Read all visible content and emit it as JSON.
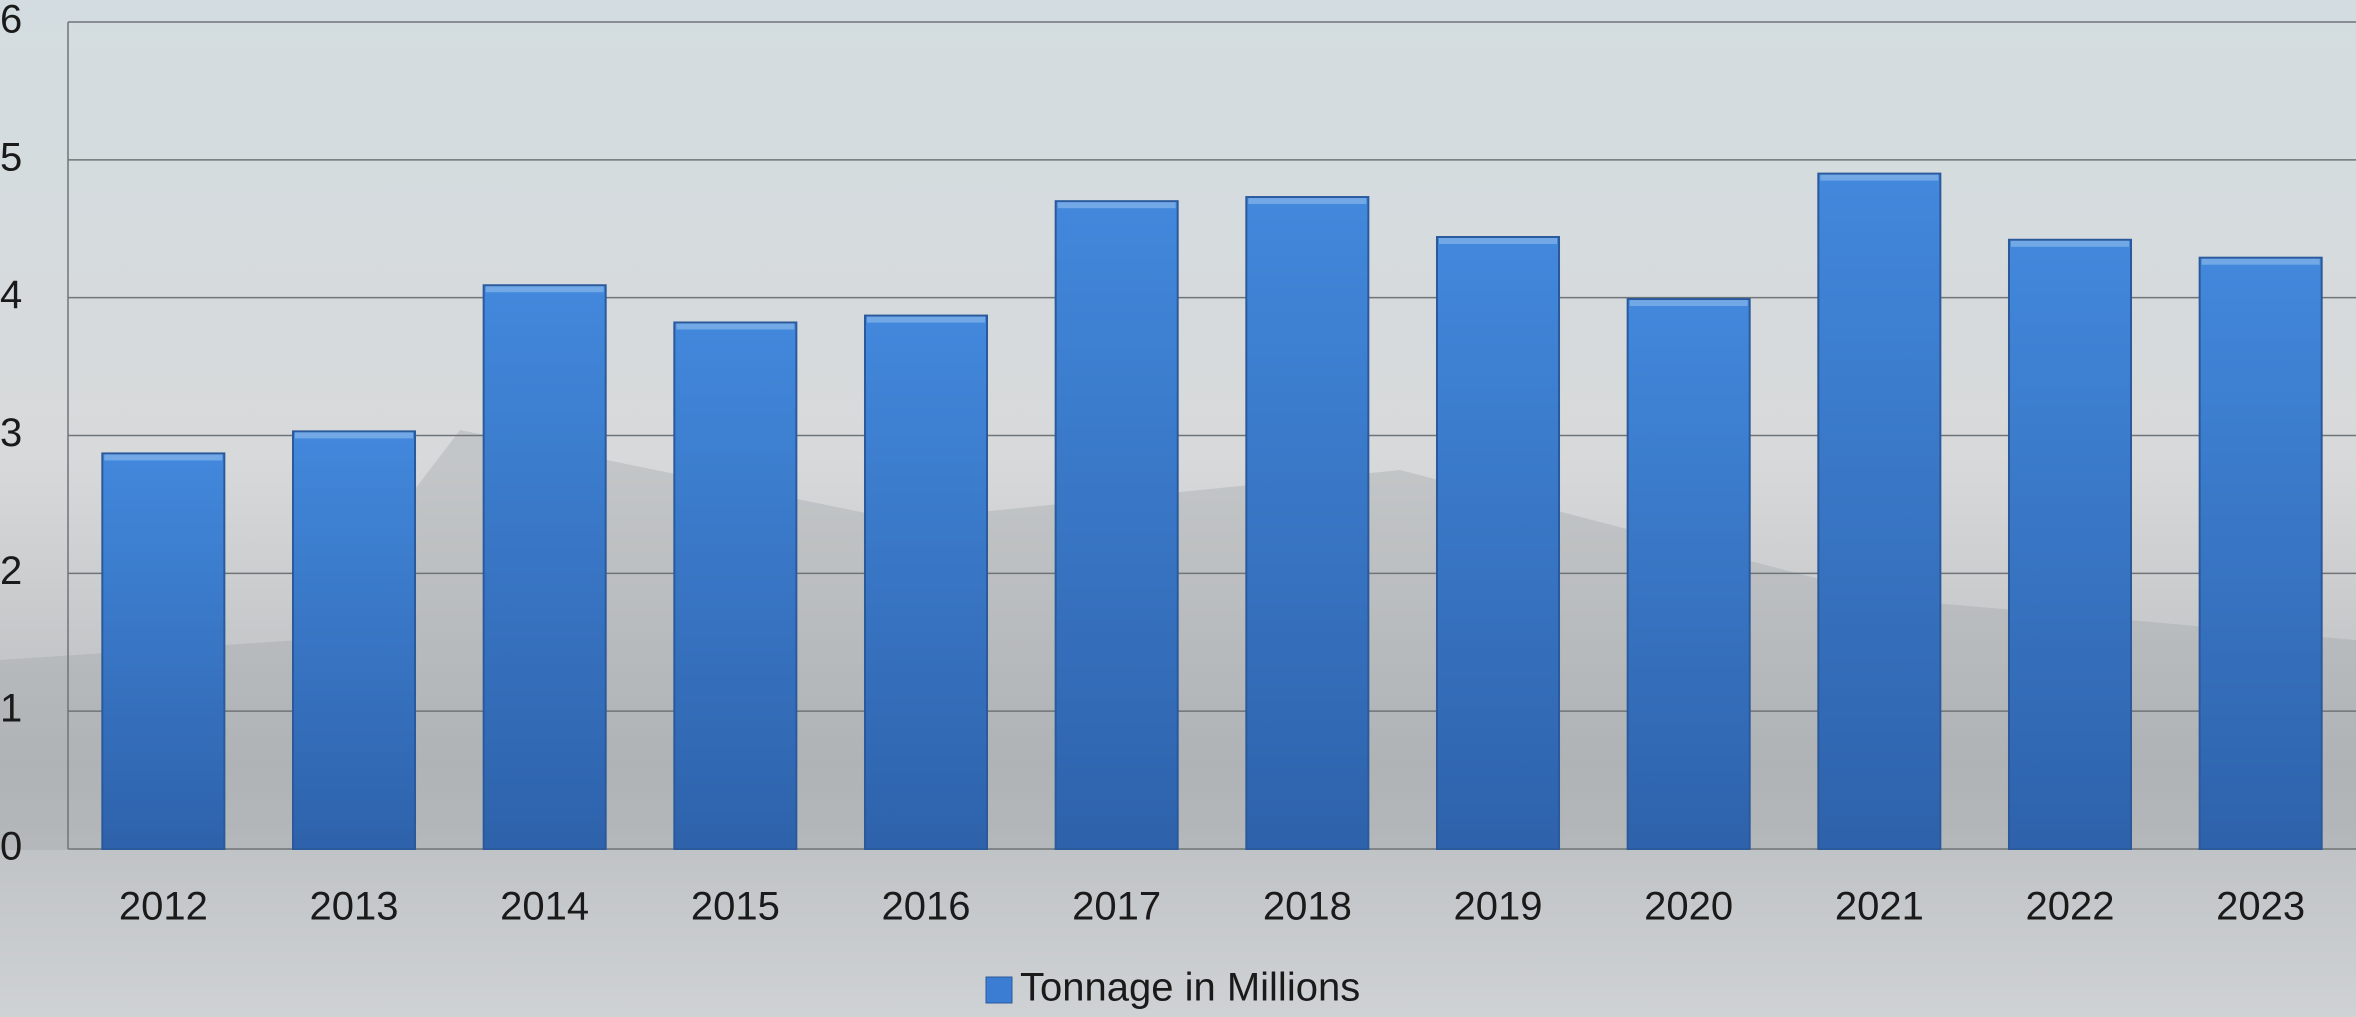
{
  "chart_data": {
    "type": "bar",
    "categories": [
      "2012",
      "2013",
      "2014",
      "2015",
      "2016",
      "2017",
      "2018",
      "2019",
      "2020",
      "2021",
      "2022",
      "2023"
    ],
    "series": [
      {
        "name": "Tonnage in Millions",
        "color": "#3a7dd2",
        "values": [
          2.87,
          3.03,
          4.09,
          3.82,
          3.87,
          4.7,
          4.73,
          4.44,
          3.99,
          4.9,
          4.42,
          4.29
        ]
      }
    ],
    "ylim": [
      0,
      6
    ],
    "yticks": [
      0,
      1,
      2,
      3,
      4,
      5,
      6
    ],
    "grid": true,
    "legend": "bottom"
  }
}
